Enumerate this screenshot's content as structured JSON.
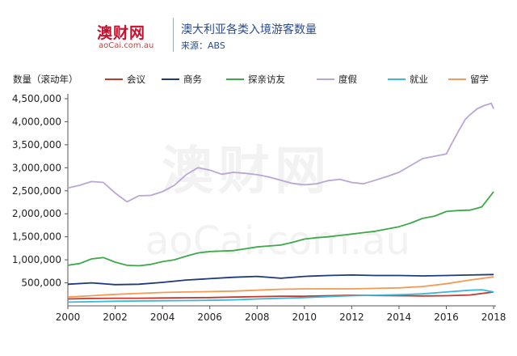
{
  "header": {
    "logo_main": "澳财网",
    "logo_sub": "aoCai.com.au",
    "title": "澳大利亚各类入境游客数量",
    "source": "来源：ABS"
  },
  "watermark": {
    "main": "澳财网",
    "sub": "aoCai.com.au"
  },
  "chart_data": {
    "type": "line",
    "title": "澳大利亚各类入境游客数量",
    "ylabel": "数量（滚动年）",
    "xlabel": "",
    "xlim": [
      2000,
      2018.1
    ],
    "ylim": [
      0,
      4500000
    ],
    "xticks": [
      2000,
      2002,
      2004,
      2006,
      2008,
      2010,
      2012,
      2014,
      2016,
      2018
    ],
    "yticks": [
      500000,
      1000000,
      1500000,
      2000000,
      2500000,
      3000000,
      3500000,
      4000000,
      4500000
    ],
    "ytick_labels": [
      "500,000",
      "1,000,000",
      "1,500,000",
      "2,000,000",
      "2,500,000",
      "3,000,000",
      "3,500,000",
      "4,000,000",
      "4,500,000"
    ],
    "grid": false,
    "legend_position": "top",
    "series": [
      {
        "name": "会议",
        "color": "#c0392b",
        "x": [
          2000,
          2001,
          2002,
          2003,
          2004,
          2005,
          2006,
          2007,
          2008,
          2009,
          2010,
          2011,
          2012,
          2013,
          2014,
          2015,
          2016,
          2017,
          2018
        ],
        "y": [
          150000,
          160000,
          165000,
          165000,
          170000,
          175000,
          180000,
          190000,
          200000,
          210000,
          210000,
          220000,
          230000,
          225000,
          220000,
          215000,
          220000,
          235000,
          300000
        ]
      },
      {
        "name": "商务",
        "color": "#1f3a7a",
        "x": [
          2000,
          2001,
          2002,
          2003,
          2004,
          2005,
          2006,
          2007,
          2008,
          2009,
          2010,
          2011,
          2012,
          2013,
          2014,
          2015,
          2016,
          2017,
          2018
        ],
        "y": [
          470000,
          500000,
          460000,
          470000,
          510000,
          560000,
          590000,
          620000,
          640000,
          600000,
          640000,
          660000,
          670000,
          660000,
          660000,
          650000,
          660000,
          670000,
          680000
        ]
      },
      {
        "name": "探亲访友",
        "color": "#3caa4a",
        "x": [
          2000,
          2000.5,
          2001,
          2001.5,
          2002,
          2002.5,
          2003,
          2003.5,
          2004,
          2004.5,
          2005,
          2005.5,
          2006,
          2006.5,
          2007,
          2007.5,
          2008,
          2008.5,
          2009,
          2009.5,
          2010,
          2010.5,
          2011,
          2011.5,
          2012,
          2012.5,
          2013,
          2013.5,
          2014,
          2014.5,
          2015,
          2015.5,
          2016,
          2016.5,
          2017,
          2017.5,
          2018
        ],
        "y": [
          880000,
          920000,
          1020000,
          1050000,
          950000,
          880000,
          870000,
          900000,
          960000,
          1000000,
          1080000,
          1150000,
          1180000,
          1190000,
          1200000,
          1240000,
          1280000,
          1300000,
          1320000,
          1380000,
          1450000,
          1480000,
          1500000,
          1530000,
          1560000,
          1590000,
          1620000,
          1670000,
          1720000,
          1800000,
          1900000,
          1950000,
          2050000,
          2070000,
          2080000,
          2150000,
          2480000
        ]
      },
      {
        "name": "度假",
        "color": "#b9a6d6",
        "x": [
          2000,
          2000.5,
          2001,
          2001.5,
          2002,
          2002.5,
          2003,
          2003.5,
          2004,
          2004.5,
          2005,
          2005.5,
          2006,
          2006.5,
          2007,
          2007.5,
          2008,
          2008.5,
          2009,
          2009.5,
          2010,
          2010.5,
          2011,
          2011.5,
          2012,
          2012.5,
          2013,
          2013.5,
          2014,
          2014.5,
          2015,
          2015.5,
          2016,
          2016.2,
          2016.5,
          2016.8,
          2017,
          2017.3,
          2017.6,
          2017.9,
          2018
        ],
        "y": [
          2560000,
          2620000,
          2700000,
          2680000,
          2450000,
          2260000,
          2390000,
          2400000,
          2480000,
          2620000,
          2850000,
          3000000,
          2950000,
          2860000,
          2900000,
          2880000,
          2850000,
          2800000,
          2730000,
          2660000,
          2630000,
          2650000,
          2720000,
          2750000,
          2680000,
          2650000,
          2730000,
          2810000,
          2900000,
          3050000,
          3200000,
          3250000,
          3300000,
          3500000,
          3780000,
          4050000,
          4150000,
          4280000,
          4350000,
          4400000,
          4280000
        ]
      },
      {
        "name": "就业",
        "color": "#3ab7d9",
        "x": [
          2000,
          2001,
          2002,
          2003,
          2004,
          2005,
          2006,
          2007,
          2008,
          2009,
          2010,
          2011,
          2012,
          2013,
          2014,
          2015,
          2016,
          2017,
          2017.5,
          2018
        ],
        "y": [
          80000,
          90000,
          100000,
          105000,
          110000,
          115000,
          120000,
          130000,
          150000,
          165000,
          180000,
          200000,
          220000,
          230000,
          240000,
          260000,
          300000,
          340000,
          350000,
          300000
        ]
      },
      {
        "name": "留学",
        "color": "#f39a56",
        "x": [
          2000,
          2001,
          2002,
          2003,
          2004,
          2005,
          2006,
          2007,
          2008,
          2009,
          2010,
          2011,
          2012,
          2013,
          2014,
          2015,
          2016,
          2017,
          2018
        ],
        "y": [
          190000,
          220000,
          250000,
          270000,
          290000,
          300000,
          310000,
          320000,
          340000,
          360000,
          370000,
          370000,
          370000,
          380000,
          390000,
          420000,
          480000,
          560000,
          630000
        ]
      }
    ]
  }
}
